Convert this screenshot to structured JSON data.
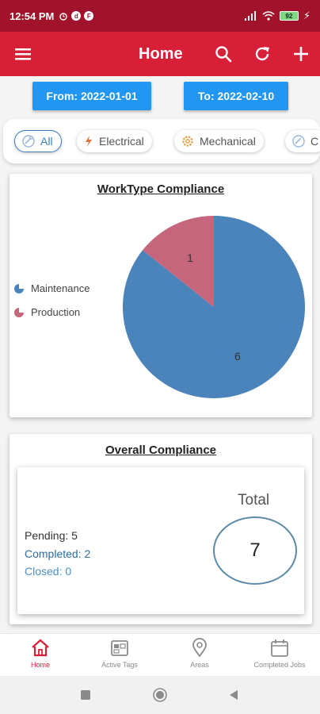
{
  "status_bar": {
    "time": "12:54 PM",
    "battery": "92"
  },
  "app_bar": {
    "title": "Home"
  },
  "date_range": {
    "from_label": "From: 2022-01-01",
    "to_label": "To: 2022-02-10"
  },
  "filters": [
    {
      "label": "All",
      "icon": "all-tools-icon",
      "active": true
    },
    {
      "label": "Electrical",
      "icon": "electrical-icon",
      "active": false
    },
    {
      "label": "Mechanical",
      "icon": "gear-icon",
      "active": false
    },
    {
      "label": "C",
      "icon": "tools-icon",
      "active": false
    }
  ],
  "worktype_card": {
    "title": "WorkType Compliance",
    "legend": [
      {
        "label": "Maintenance",
        "color": "#4a84bb"
      },
      {
        "label": "Production",
        "color": "#c5667c"
      }
    ]
  },
  "chart_data": {
    "type": "pie",
    "title": "WorkType Compliance",
    "categories": [
      "Maintenance",
      "Production"
    ],
    "values": [
      6,
      1
    ],
    "colors": [
      "#4a84bb",
      "#c5667c"
    ],
    "legend": "left"
  },
  "overall_card": {
    "title": "Overall Compliance",
    "pending": "Pending: 5",
    "completed": "Completed: 2",
    "closed": "Closed: 0",
    "total_label": "Total",
    "total_value": "7"
  },
  "bottom_nav": [
    {
      "label": "Home",
      "icon": "home-icon",
      "active": true
    },
    {
      "label": "Active Tags",
      "icon": "tag-icon",
      "active": false
    },
    {
      "label": "Areas",
      "icon": "location-pin-icon",
      "active": false
    },
    {
      "label": "Completed Jobs",
      "icon": "calendar-icon",
      "active": false
    }
  ],
  "colors": {
    "app_bar": "#d81f38",
    "status_bar": "#a0132a",
    "date_button": "#2196f3"
  }
}
